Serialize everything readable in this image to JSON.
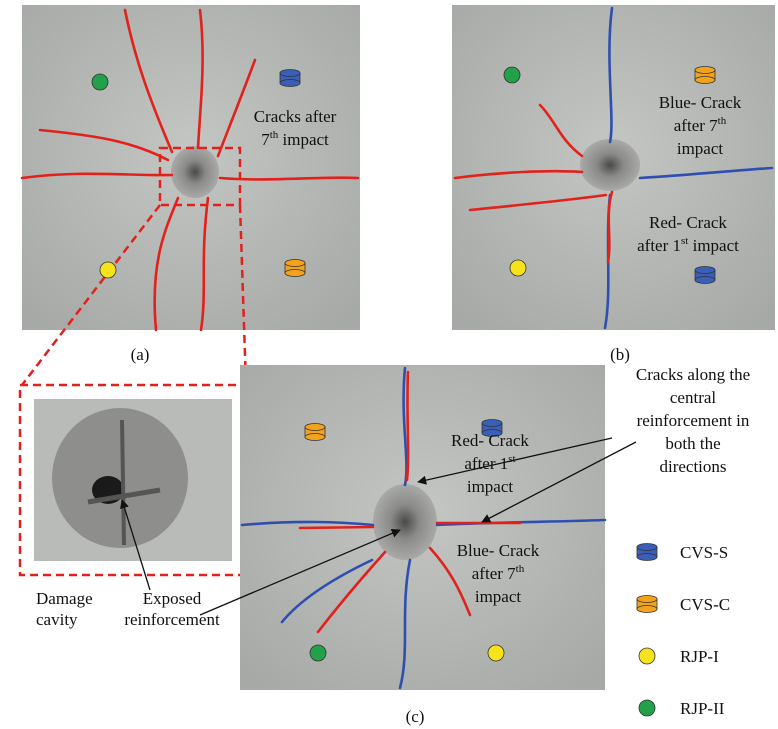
{
  "panels": [
    {
      "label": "(a)",
      "notes": [
        {
          "lines": [
            {
              "text": "Cracks after"
            },
            {
              "text": "7",
              "sup": "th",
              "tail": " impact"
            }
          ]
        }
      ]
    },
    {
      "label": "(b)",
      "notes": [
        {
          "lines": [
            {
              "text": "Blue- Crack"
            },
            {
              "text": "after 7",
              "sup": "th"
            },
            {
              "text": "impact"
            }
          ]
        },
        {
          "lines": [
            {
              "text": "Red- Crack"
            },
            {
              "text": "after 1",
              "sup": "st",
              "tail": " impact"
            }
          ]
        }
      ]
    },
    {
      "label": "(c)",
      "notes": [
        {
          "lines": [
            {
              "text": "Red- Crack"
            },
            {
              "text": "after 1",
              "sup": "st"
            },
            {
              "text": "impact"
            }
          ]
        },
        {
          "lines": [
            {
              "text": "Blue- Crack"
            },
            {
              "text": "after 7",
              "sup": "th"
            },
            {
              "text": "impact"
            }
          ]
        }
      ]
    }
  ],
  "inset": {
    "notes": [
      {
        "lines": [
          {
            "text": "Damage"
          },
          {
            "text": "cavity"
          }
        ]
      },
      {
        "lines": [
          {
            "text": "Exposed"
          },
          {
            "text": "reinforcement"
          }
        ]
      }
    ]
  },
  "callout": {
    "lines": [
      {
        "text": "Cracks along the"
      },
      {
        "text": "central"
      },
      {
        "text": "reinforcement in"
      },
      {
        "text": "both the"
      },
      {
        "text": "directions"
      }
    ]
  },
  "legend": [
    "CVS-S",
    "CVS-C",
    "RJP-I",
    "RJP-II"
  ]
}
